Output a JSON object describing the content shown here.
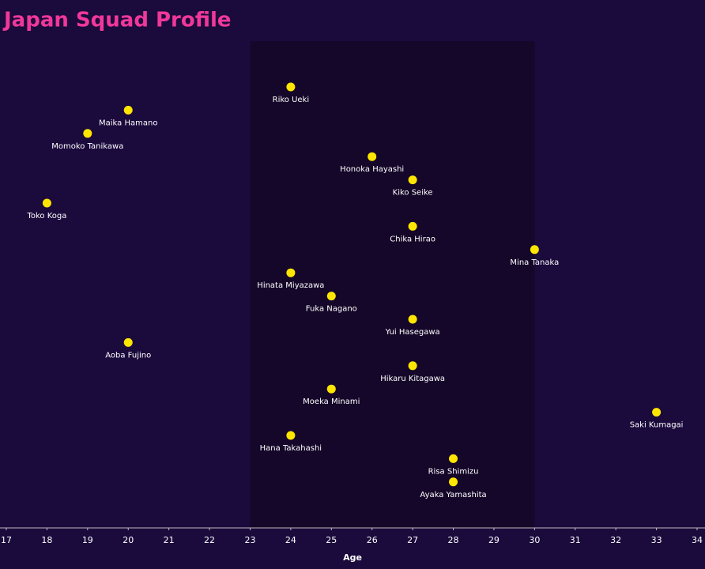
{
  "chart_data": {
    "type": "scatter",
    "title": "Japan Squad Profile",
    "x_label": "Age",
    "x": [
      24,
      20,
      19,
      26,
      27,
      18,
      27,
      30,
      24,
      25,
      27,
      20,
      27,
      25,
      33,
      24,
      28,
      28
    ],
    "point_labels": [
      "Riko Ueki",
      "Maika Hamano",
      "Momoko Tanikawa",
      "Honoka Hayashi",
      "Kiko Seike",
      "Toko Koga",
      "Chika Hirao",
      "Mina Tanaka",
      "Hinata Miyazawa",
      "Fuka Nagano",
      "Yui Hasegawa",
      "Aoba Fujino",
      "Hikaru Kitagawa",
      "Moeka Minami",
      "Saki Kumagai",
      "Hana Takahashi",
      "Risa Shimizu",
      "Ayaka Yamashita"
    ],
    "color": "#ffe600",
    "xlim": [
      17,
      34
    ],
    "xticks": [
      17,
      18,
      19,
      20,
      21,
      22,
      23,
      24,
      25,
      26,
      27,
      28,
      29,
      30,
      31,
      32,
      33,
      34
    ],
    "highlight_range": [
      23,
      30
    ]
  }
}
